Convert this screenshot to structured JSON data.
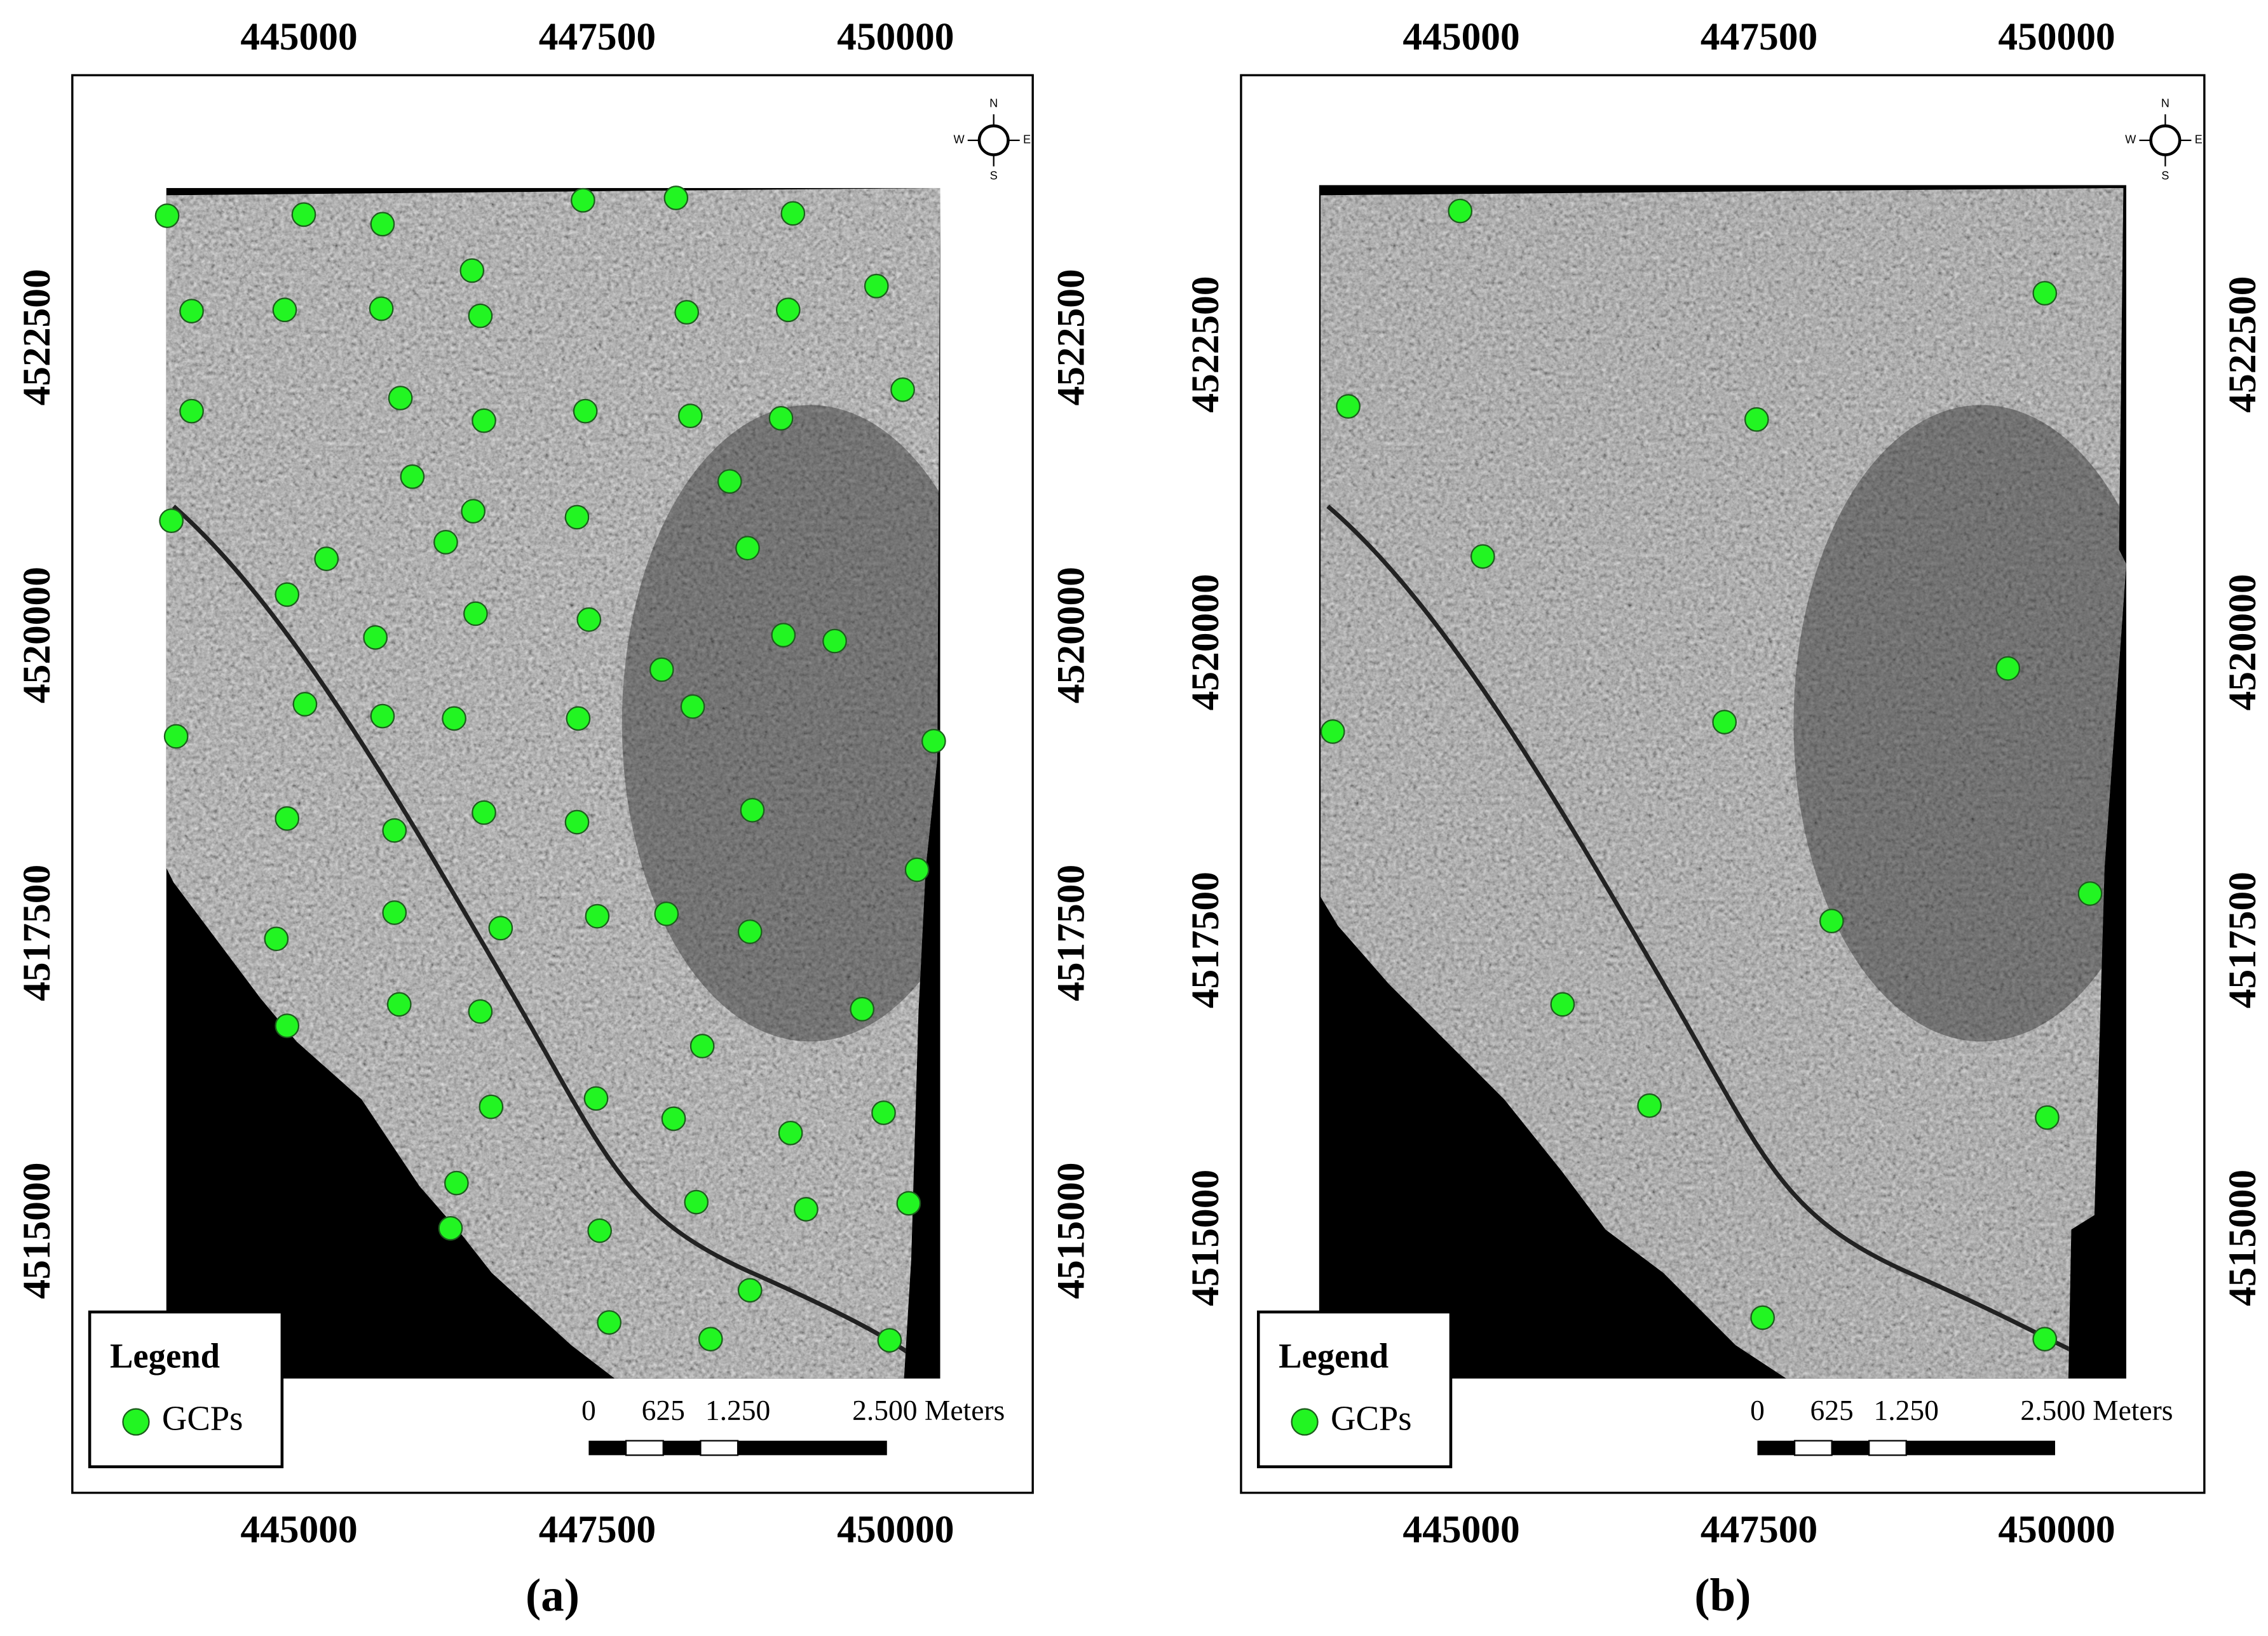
{
  "panels": [
    {
      "caption": "(a)",
      "xlim": [
        443100,
        451150
      ],
      "ylim": [
        4512800,
        4524700
      ],
      "xticks": [
        445000,
        447500,
        450000
      ],
      "yticks": [
        4515000,
        4517500,
        4520000,
        4522500
      ],
      "gcps": {
        "x": [
          443895,
          445040,
          445700,
          447380,
          448160,
          449140,
          444100,
          444880,
          445690,
          446450,
          446520,
          448250,
          449100,
          449840,
          444100,
          445850,
          446550,
          447400,
          448280,
          449040,
          450060,
          443930,
          445950,
          446460,
          447330,
          448610,
          448760,
          445230,
          446230,
          444900,
          445640,
          446480,
          447430,
          448040,
          449060,
          449490,
          445050,
          445700,
          446300,
          447340,
          448300,
          443970,
          450320,
          444900,
          445800,
          446550,
          447330,
          448800,
          450180,
          444810,
          445800,
          446690,
          447500,
          448080,
          448780,
          444900,
          445840,
          446520,
          448380,
          449720,
          446610,
          447490,
          448140,
          449120,
          449900,
          446320,
          446270,
          447520,
          448330,
          449250,
          450110,
          447600,
          448780,
          448450,
          449950
        ],
        "y": [
          4523520,
          4523530,
          4523450,
          4523650,
          4523670,
          4523540,
          4522720,
          4522730,
          4522740,
          4523060,
          4522680,
          4522710,
          4522730,
          4522930,
          4521880,
          4521990,
          4521800,
          4521880,
          4521840,
          4521820,
          4522060,
          4520960,
          4521330,
          4521040,
          4520990,
          4521290,
          4520730,
          4520640,
          4520780,
          4520340,
          4519980,
          4520180,
          4520130,
          4519710,
          4520000,
          4519950,
          4519420,
          4519320,
          4519300,
          4519300,
          4519400,
          4519150,
          4519110,
          4518460,
          4518360,
          4518510,
          4518430,
          4518530,
          4518030,
          4517450,
          4517670,
          4517540,
          4517640,
          4517660,
          4517510,
          4516720,
          4516900,
          4516840,
          4516550,
          4516860,
          4516040,
          4516110,
          4515940,
          4515820,
          4515990,
          4515400,
          4515020,
          4515000,
          4515240,
          4515180,
          4515230,
          4514230,
          4514500,
          4514090,
          4514080
        ]
      }
    },
    {
      "caption": "(b)",
      "xlim": [
        443150,
        451240
      ],
      "ylim": [
        4512860,
        4524760
      ],
      "xticks": [
        445000,
        447500,
        450000
      ],
      "yticks": [
        4515000,
        4517500,
        4520000,
        4522500
      ],
      "gcps": {
        "x": [
          444990,
          449900,
          444050,
          447480,
          445180,
          449590,
          447210,
          443920,
          450280,
          448110,
          445850,
          446580,
          449920,
          447530,
          449900
        ],
        "y": [
          4523620,
          4522930,
          4521980,
          4521870,
          4520720,
          4519780,
          4519330,
          4519250,
          4517890,
          4517660,
          4516960,
          4516110,
          4516010,
          4514330,
          4514150
        ]
      }
    }
  ],
  "legend": {
    "title": "Legend",
    "item": "GCPs",
    "color": "#22f522"
  },
  "scale_bar": {
    "ticks": [
      0,
      625,
      {
        "value": 1250,
        "label": "1.250"
      },
      {
        "value": 2500,
        "label": "2.500 Meters"
      }
    ]
  },
  "compass": {
    "n": "N",
    "s": "S",
    "e": "E",
    "w": "W"
  }
}
